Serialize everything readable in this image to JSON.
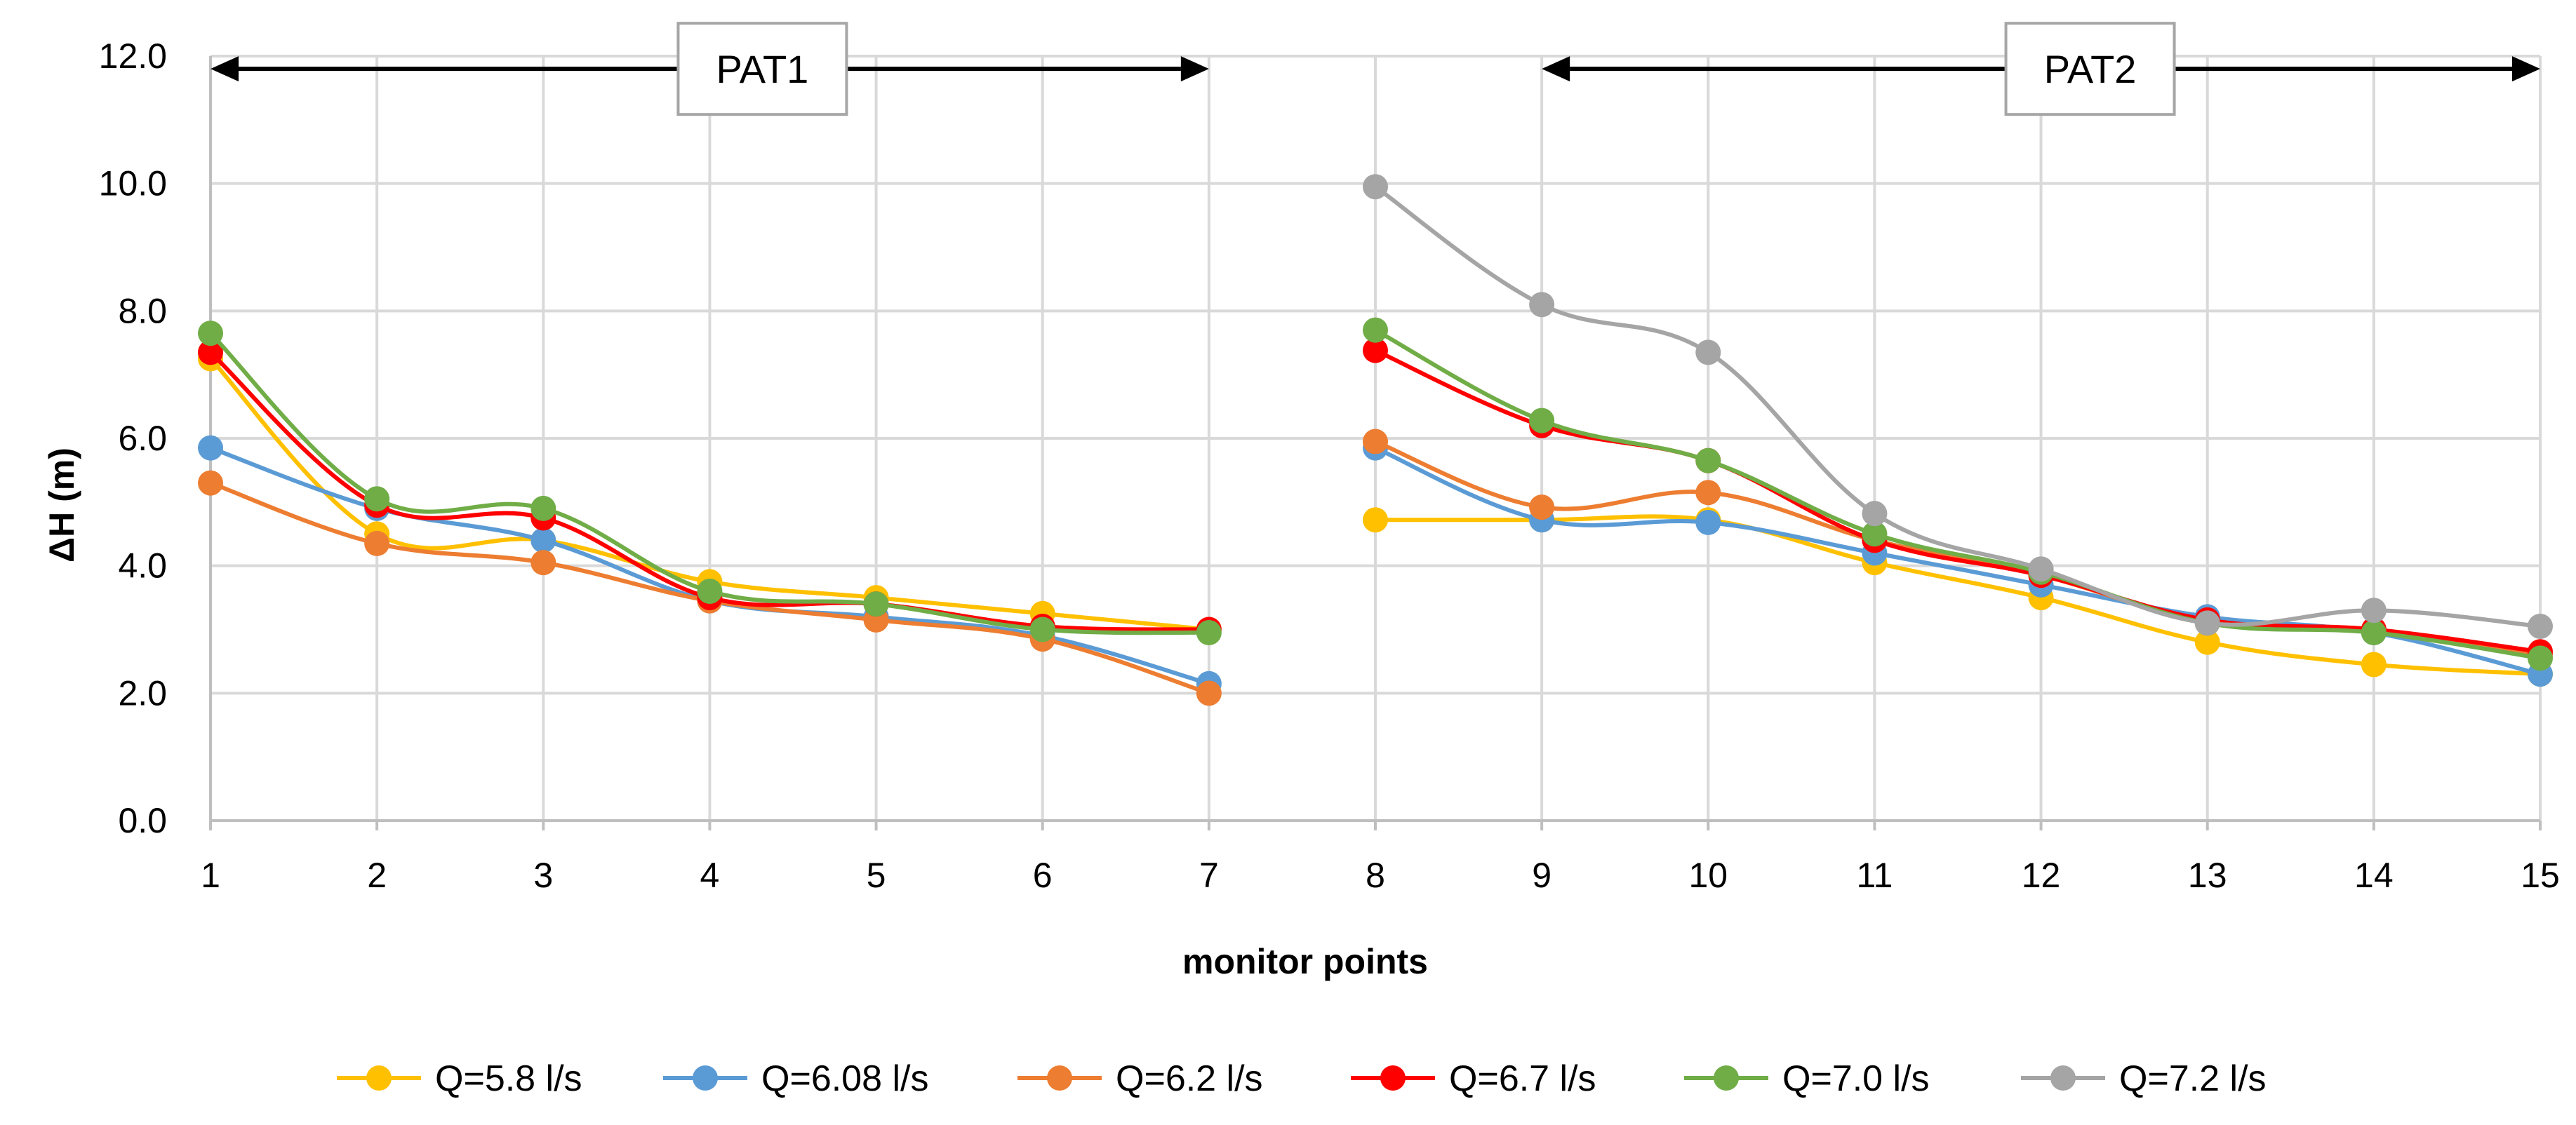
{
  "chart_data": {
    "type": "line",
    "xlabel": "monitor points",
    "ylabel": "ΔH (m)",
    "x": [
      1,
      2,
      3,
      4,
      5,
      6,
      7,
      8,
      9,
      10,
      11,
      12,
      13,
      14,
      15
    ],
    "xlim": [
      1,
      15
    ],
    "ylim": [
      0,
      12
    ],
    "yticks": [
      "0.0",
      "2.0",
      "4.0",
      "6.0",
      "8.0",
      "10.0",
      "12.0"
    ],
    "grid": true,
    "legend_position": "bottom",
    "annotations": [
      {
        "label": "PAT1",
        "from_x": 1,
        "to_x": 7,
        "y": 11.8
      },
      {
        "label": "PAT2",
        "from_x": 9,
        "to_x": 15,
        "y": 11.8
      }
    ],
    "series": [
      {
        "name": "Q=5.8 l/s",
        "color": "#FFC000",
        "values": [
          7.25,
          4.5,
          4.4,
          3.75,
          3.5,
          3.25,
          3.0,
          4.72,
          4.72,
          4.72,
          4.05,
          3.5,
          2.8,
          2.45,
          2.3
        ]
      },
      {
        "name": "Q=6.08 l/s",
        "color": "#5B9BD5",
        "values": [
          5.85,
          4.9,
          4.4,
          3.45,
          3.2,
          2.9,
          2.15,
          5.85,
          4.72,
          4.68,
          4.2,
          3.7,
          3.2,
          2.95,
          2.3
        ]
      },
      {
        "name": "Q=6.2 l/s",
        "color": "#ED7D31",
        "values": [
          5.3,
          4.35,
          4.05,
          3.45,
          3.15,
          2.85,
          2.0,
          5.95,
          4.92,
          5.15,
          4.4,
          3.85,
          3.12,
          3.0,
          2.6
        ]
      },
      {
        "name": "Q=6.7 l/s",
        "color": "#FF0000",
        "values": [
          7.35,
          4.95,
          4.75,
          3.5,
          3.4,
          3.05,
          3.0,
          7.38,
          6.2,
          5.65,
          4.4,
          3.85,
          3.15,
          3.0,
          2.65
        ]
      },
      {
        "name": "Q=7.0 l/s",
        "color": "#70AD47",
        "values": [
          7.65,
          5.05,
          4.9,
          3.6,
          3.4,
          3.0,
          2.95,
          7.7,
          6.28,
          5.65,
          4.5,
          3.9,
          3.1,
          2.95,
          2.55
        ]
      },
      {
        "name": "Q=7.2 l/s",
        "color": "#A5A5A5",
        "values": [
          null,
          null,
          null,
          null,
          null,
          null,
          null,
          9.95,
          8.1,
          7.35,
          4.82,
          3.95,
          3.1,
          3.3,
          3.05
        ]
      }
    ]
  }
}
